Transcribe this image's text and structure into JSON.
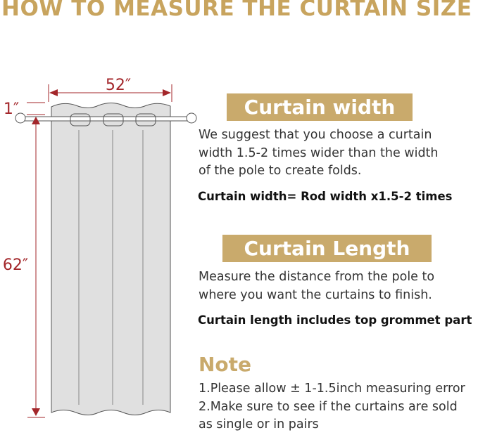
{
  "title": "HOW TO MEASURE THE CURTAIN SIZE",
  "diagram": {
    "width_label": "52″",
    "grommet_label": "1″",
    "length_label": "62″",
    "accent_color": "#a3262a"
  },
  "width_section": {
    "badge": "Curtain width",
    "lines": [
      "We suggest that you choose a curtain",
      "width 1.5-2 times wider than the width",
      "of the pole to create folds."
    ],
    "formula": "Curtain width= Rod width x1.5-2 times"
  },
  "length_section": {
    "badge": "Curtain Length",
    "lines": [
      "Measure the distance from the pole to",
      "where you want the curtains to finish."
    ],
    "formula": "Curtain length includes top grommet part"
  },
  "note": {
    "heading": "Note",
    "lines": [
      "1.Please allow ± 1-1.5inch measuring error",
      "2.Make sure to see if the curtains are sold",
      "as single or in pairs"
    ]
  },
  "colors": {
    "gold": "#c9aa6c",
    "red": "#a3262a",
    "curtain": "#e0e0e0"
  }
}
